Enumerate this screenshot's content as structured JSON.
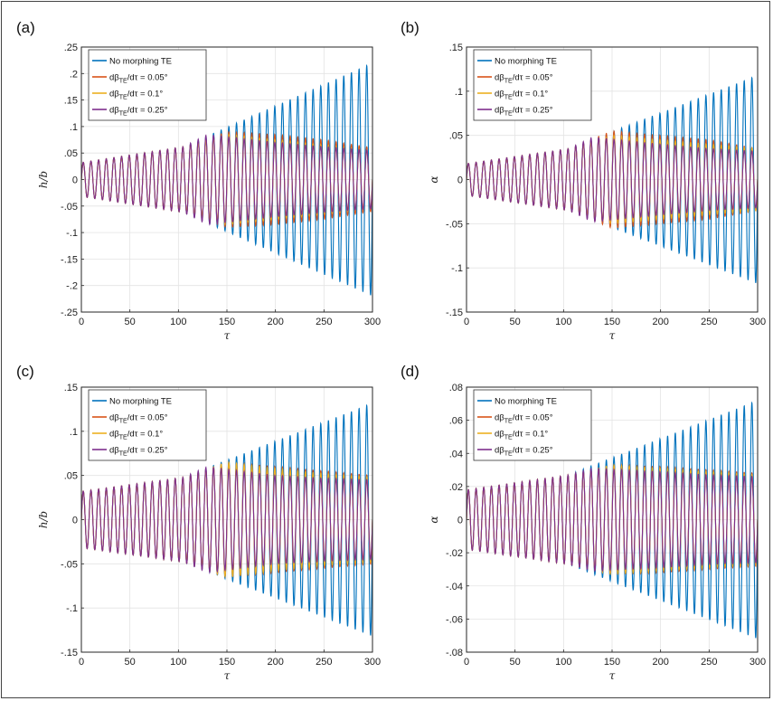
{
  "chart_data": [
    {
      "type": "line",
      "panel": "(a)",
      "xlabel": "τ",
      "ylabel": "h/b",
      "xlim": [
        0,
        300
      ],
      "ylim": [
        -0.25,
        0.25
      ],
      "xticks": [
        0,
        50,
        100,
        150,
        200,
        250,
        300
      ],
      "yticks": [
        -0.25,
        -0.2,
        -0.15,
        -0.1,
        -0.05,
        0,
        0.05,
        0.1,
        0.15,
        0.2,
        0.25
      ],
      "grid": true,
      "legend_location": "top-left",
      "oscillation": {
        "cycles": 38,
        "tau_start": 0,
        "tau_end": 300,
        "initial_amplitude": 0.032,
        "morph_start": 105
      },
      "series": [
        {
          "name": "No morphing TE",
          "color": "#0072BD",
          "envelope": [
            [
              0,
              0.032
            ],
            [
              105,
              0.062
            ],
            [
              300,
              0.22
            ]
          ]
        },
        {
          "name": "dβTE/dτ = 0.05°",
          "label_parts": {
            "pre": "dβ",
            "sub": "TE",
            "post": "/dτ = 0.05°"
          },
          "color": "#D95319",
          "envelope": [
            [
              0,
              0.032
            ],
            [
              105,
              0.062
            ],
            [
              150,
              0.09
            ],
            [
              200,
              0.085
            ],
            [
              250,
              0.075
            ],
            [
              300,
              0.06
            ]
          ]
        },
        {
          "name": "dβTE/dτ = 0.1°",
          "label_parts": {
            "pre": "dβ",
            "sub": "TE",
            "post": "/dτ = 0.1°"
          },
          "color": "#EDB120",
          "envelope": [
            [
              0,
              0.032
            ],
            [
              105,
              0.062
            ],
            [
              150,
              0.085
            ],
            [
              200,
              0.075
            ],
            [
              250,
              0.065
            ],
            [
              300,
              0.055
            ]
          ]
        },
        {
          "name": "dβTE/dτ = 0.25°",
          "label_parts": {
            "pre": "dβ",
            "sub": "TE",
            "post": "/dτ = 0.25°"
          },
          "color": "#7E2F8E",
          "envelope": [
            [
              0,
              0.032
            ],
            [
              105,
              0.062
            ],
            [
              130,
              0.085
            ],
            [
              200,
              0.07
            ],
            [
              250,
              0.062
            ],
            [
              300,
              0.055
            ]
          ]
        }
      ]
    },
    {
      "type": "line",
      "panel": "(b)",
      "xlabel": "τ",
      "ylabel": "α",
      "xlim": [
        0,
        300
      ],
      "ylim": [
        -0.15,
        0.15
      ],
      "xticks": [
        0,
        50,
        100,
        150,
        200,
        250,
        300
      ],
      "yticks": [
        -0.15,
        -0.1,
        -0.05,
        0,
        0.05,
        0.1,
        0.15
      ],
      "grid": true,
      "legend_location": "top-left",
      "oscillation": {
        "cycles": 38,
        "tau_start": 0,
        "tau_end": 300,
        "initial_amplitude": 0.018,
        "morph_start": 105
      },
      "series": [
        {
          "name": "No morphing TE",
          "color": "#0072BD",
          "envelope": [
            [
              0,
              0.018
            ],
            [
              105,
              0.035
            ],
            [
              300,
              0.118
            ]
          ]
        },
        {
          "name": "dβTE/dτ = 0.05°",
          "label_parts": {
            "pre": "dβ",
            "sub": "TE",
            "post": "/dτ = 0.05°"
          },
          "color": "#D95319",
          "envelope": [
            [
              0,
              0.018
            ],
            [
              105,
              0.035
            ],
            [
              150,
              0.055
            ],
            [
              200,
              0.05
            ],
            [
              250,
              0.045
            ],
            [
              300,
              0.035
            ]
          ]
        },
        {
          "name": "dβTE/dτ = 0.1°",
          "label_parts": {
            "pre": "dβ",
            "sub": "TE",
            "post": "/dτ = 0.1°"
          },
          "color": "#EDB120",
          "envelope": [
            [
              0,
              0.018
            ],
            [
              105,
              0.035
            ],
            [
              150,
              0.05
            ],
            [
              200,
              0.045
            ],
            [
              250,
              0.04
            ],
            [
              300,
              0.035
            ]
          ]
        },
        {
          "name": "dβTE/dτ = 0.25°",
          "label_parts": {
            "pre": "dβ",
            "sub": "TE",
            "post": "/dτ = 0.25°"
          },
          "color": "#7E2F8E",
          "envelope": [
            [
              0,
              0.018
            ],
            [
              105,
              0.035
            ],
            [
              130,
              0.048
            ],
            [
              200,
              0.04
            ],
            [
              250,
              0.035
            ],
            [
              300,
              0.032
            ]
          ]
        }
      ]
    },
    {
      "type": "line",
      "panel": "(c)",
      "xlabel": "τ",
      "ylabel": "h/b",
      "xlim": [
        0,
        300
      ],
      "ylim": [
        -0.15,
        0.15
      ],
      "xticks": [
        0,
        50,
        100,
        150,
        200,
        250,
        300
      ],
      "yticks": [
        -0.15,
        -0.1,
        -0.05,
        0,
        0.05,
        0.1,
        0.15
      ],
      "grid": true,
      "legend_location": "top-left",
      "oscillation": {
        "cycles": 38,
        "tau_start": 0,
        "tau_end": 300,
        "initial_amplitude": 0.032,
        "morph_start": 105
      },
      "series": [
        {
          "name": "No morphing TE",
          "color": "#0072BD",
          "envelope": [
            [
              0,
              0.032
            ],
            [
              105,
              0.048
            ],
            [
              300,
              0.132
            ]
          ]
        },
        {
          "name": "dβTE/dτ = 0.05°",
          "label_parts": {
            "pre": "dβ",
            "sub": "TE",
            "post": "/dτ = 0.05°"
          },
          "color": "#D95319",
          "envelope": [
            [
              0,
              0.032
            ],
            [
              105,
              0.048
            ],
            [
              150,
              0.065
            ],
            [
              200,
              0.06
            ],
            [
              250,
              0.055
            ],
            [
              300,
              0.05
            ]
          ]
        },
        {
          "name": "dβTE/dτ = 0.1°",
          "label_parts": {
            "pre": "dβ",
            "sub": "TE",
            "post": "/dτ = 0.1°"
          },
          "color": "#EDB120",
          "envelope": [
            [
              0,
              0.032
            ],
            [
              105,
              0.048
            ],
            [
              150,
              0.065
            ],
            [
              200,
              0.058
            ],
            [
              250,
              0.052
            ],
            [
              300,
              0.048
            ]
          ]
        },
        {
          "name": "dβTE/dτ = 0.25°",
          "label_parts": {
            "pre": "dβ",
            "sub": "TE",
            "post": "/dτ = 0.25°"
          },
          "color": "#7E2F8E",
          "envelope": [
            [
              0,
              0.032
            ],
            [
              105,
              0.048
            ],
            [
              130,
              0.06
            ],
            [
              200,
              0.05
            ],
            [
              250,
              0.047
            ],
            [
              300,
              0.045
            ]
          ]
        }
      ]
    },
    {
      "type": "line",
      "panel": "(d)",
      "xlabel": "τ",
      "ylabel": "α",
      "xlim": [
        0,
        300
      ],
      "ylim": [
        -0.08,
        0.08
      ],
      "xticks": [
        0,
        50,
        100,
        150,
        200,
        250,
        300
      ],
      "yticks": [
        -0.08,
        -0.06,
        -0.04,
        -0.02,
        0,
        0.02,
        0.04,
        0.06,
        0.08
      ],
      "grid": true,
      "legend_location": "top-left",
      "oscillation": {
        "cycles": 38,
        "tau_start": 0,
        "tau_end": 300,
        "initial_amplitude": 0.018,
        "morph_start": 105
      },
      "series": [
        {
          "name": "No morphing TE",
          "color": "#0072BD",
          "envelope": [
            [
              0,
              0.018
            ],
            [
              105,
              0.027
            ],
            [
              300,
              0.072
            ]
          ]
        },
        {
          "name": "dβTE/dτ = 0.05°",
          "label_parts": {
            "pre": "dβ",
            "sub": "TE",
            "post": "/dτ = 0.05°"
          },
          "color": "#D95319",
          "envelope": [
            [
              0,
              0.018
            ],
            [
              105,
              0.027
            ],
            [
              150,
              0.033
            ],
            [
              200,
              0.032
            ],
            [
              250,
              0.03
            ],
            [
              300,
              0.028
            ]
          ]
        },
        {
          "name": "dβTE/dτ = 0.1°",
          "label_parts": {
            "pre": "dβ",
            "sub": "TE",
            "post": "/dτ = 0.1°"
          },
          "color": "#EDB120",
          "envelope": [
            [
              0,
              0.018
            ],
            [
              105,
              0.027
            ],
            [
              150,
              0.033
            ],
            [
              200,
              0.031
            ],
            [
              250,
              0.029
            ],
            [
              300,
              0.027
            ]
          ]
        },
        {
          "name": "dβTE/dτ = 0.25°",
          "label_parts": {
            "pre": "dβ",
            "sub": "TE",
            "post": "/dτ = 0.25°"
          },
          "color": "#7E2F8E",
          "envelope": [
            [
              0,
              0.018
            ],
            [
              105,
              0.027
            ],
            [
              130,
              0.031
            ],
            [
              200,
              0.029
            ],
            [
              250,
              0.027
            ],
            [
              300,
              0.026
            ]
          ]
        }
      ]
    }
  ]
}
